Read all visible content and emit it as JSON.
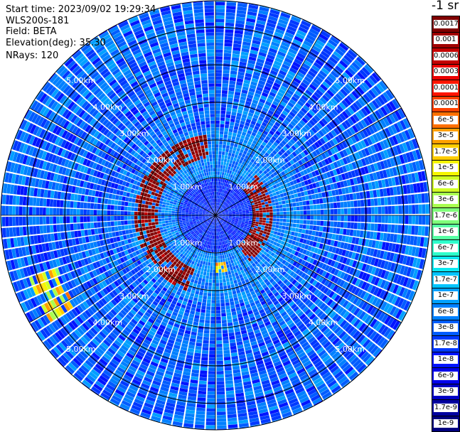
{
  "header": {
    "start_time": "Start time: 2023/09/02 19:29:34",
    "instrument": "WLS200s-181",
    "field": "Field: BETA",
    "elevation": "Elevation(deg): 35.30",
    "nrays": "NRays: 120"
  },
  "colorbar": {
    "title": "-1 sr",
    "levels": [
      {
        "label": "0.0017",
        "color": "#7f0000"
      },
      {
        "label": "0.001",
        "color": "#a00000"
      },
      {
        "label": "0.0006",
        "color": "#c40000"
      },
      {
        "label": "0.0003",
        "color": "#ea0000"
      },
      {
        "label": "0.00017",
        "color": "#ff1500"
      },
      {
        "label": "0.0001",
        "color": "#ff4000"
      },
      {
        "label": "6e-5",
        "color": "#ff7000"
      },
      {
        "label": "3e-5",
        "color": "#ff9f00"
      },
      {
        "label": "1.7e-5",
        "color": "#ffcc00"
      },
      {
        "label": "1e-5",
        "color": "#f5f500"
      },
      {
        "label": "6e-6",
        "color": "#d0ff26"
      },
      {
        "label": "3e-6",
        "color": "#a8ff4f"
      },
      {
        "label": "1.7e-6",
        "color": "#7fff7a"
      },
      {
        "label": "1e-6",
        "color": "#56ffa2"
      },
      {
        "label": "6e-7",
        "color": "#2effcb"
      },
      {
        "label": "3e-7",
        "color": "#0ae8f0"
      },
      {
        "label": "1.7e-7",
        "color": "#00c4ff"
      },
      {
        "label": "1e-7",
        "color": "#00a0ff"
      },
      {
        "label": "6e-8",
        "color": "#0080ff"
      },
      {
        "label": "3e-8",
        "color": "#005cff"
      },
      {
        "label": "1.7e-8",
        "color": "#0038ff"
      },
      {
        "label": "1e-8",
        "color": "#0014ff"
      },
      {
        "label": "6e-9",
        "color": "#0000ea"
      },
      {
        "label": "3e-9",
        "color": "#0000c4"
      },
      {
        "label": "1.7e-9",
        "color": "#00009f"
      },
      {
        "label": "1e-9",
        "color": "#00007f"
      }
    ]
  },
  "chart_data": {
    "type": "heatmap",
    "projection": "polar (PPI scan)",
    "field": "BETA",
    "elevation_deg": 35.3,
    "n_rays": 120,
    "range_rings_km": [
      1,
      2,
      3,
      4,
      5
    ],
    "range_labels": [
      "1.00km",
      "2.00km",
      "3.00km",
      "4.00km",
      "5.00km"
    ],
    "max_range_km": 5.7,
    "spoke_angles_deg": [
      0,
      30,
      60,
      90,
      120,
      150,
      180,
      210,
      240,
      270,
      300,
      330
    ],
    "features": [
      {
        "kind": "high_backscatter_ring",
        "range_km": [
          1.5,
          2.2
        ],
        "azimuth_deg": [
          200,
          355
        ],
        "level": "1e-4"
      },
      {
        "kind": "high_backscatter_ring",
        "range_km": [
          1.0,
          1.5
        ],
        "azimuth_deg": [
          45,
          145
        ],
        "level": "1e-4"
      },
      {
        "kind": "high_backscatter_spot",
        "range_km": [
          1.3,
          1.5
        ],
        "azimuth_deg": [
          168,
          180
        ],
        "level": "3e-5"
      },
      {
        "kind": "enhanced_streak",
        "range_km": [
          4.4,
          5.2
        ],
        "azimuth_deg": [
          238,
          252
        ],
        "level": "1e-5"
      }
    ],
    "background_level": "3e-8"
  }
}
